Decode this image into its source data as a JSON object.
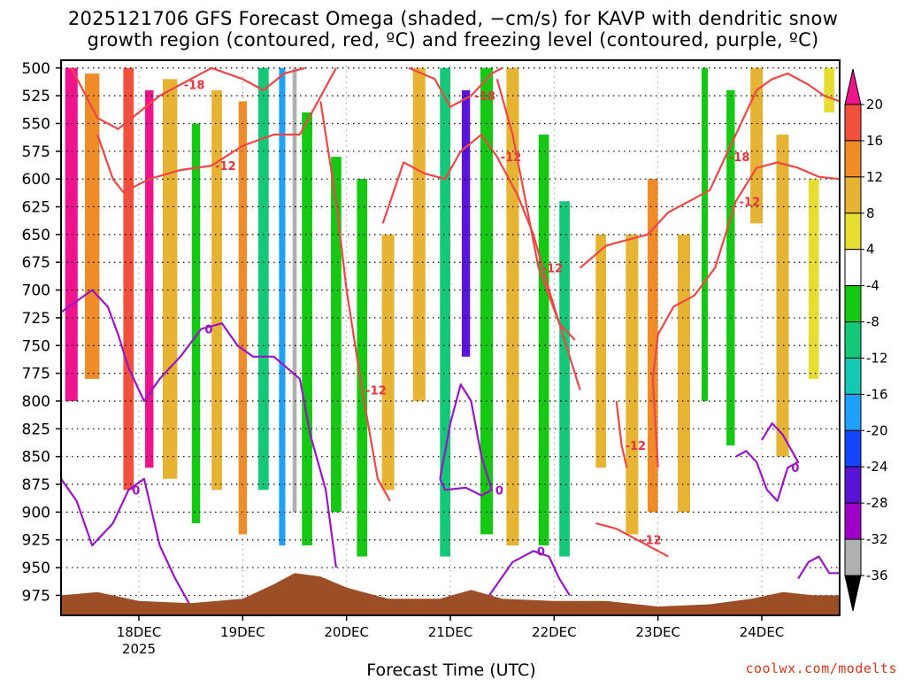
{
  "chart_data": {
    "type": "heatmap",
    "title_line1": "2025121706 GFS Forecast Omega (shaded, −cm/s) for KAVP with dendritic snow",
    "title_line2": "growth region (contoured, red, ºC) and freezing level (contoured, purple, ºC)",
    "xlabel": "Forecast Time (UTC)",
    "credit": "coolwx.com/modelts",
    "x_ticks": [
      {
        "day": 18,
        "label": "18DEC",
        "sub": "2025"
      },
      {
        "day": 19,
        "label": "19DEC",
        "sub": ""
      },
      {
        "day": 20,
        "label": "20DEC",
        "sub": ""
      },
      {
        "day": 21,
        "label": "21DEC",
        "sub": ""
      },
      {
        "day": 22,
        "label": "22DEC",
        "sub": ""
      },
      {
        "day": 23,
        "label": "23DEC",
        "sub": ""
      },
      {
        "day": 24,
        "label": "24DEC",
        "sub": ""
      }
    ],
    "x_range_days": [
      17.25,
      24.75
    ],
    "y_ticks": [
      500,
      525,
      550,
      575,
      600,
      625,
      650,
      675,
      700,
      725,
      750,
      775,
      800,
      825,
      850,
      875,
      900,
      925,
      950,
      975
    ],
    "y_range_hpa": [
      493,
      993
    ],
    "colorbar": {
      "levels": [
        -36,
        -32,
        -28,
        -24,
        -20,
        -16,
        -12,
        -8,
        -4,
        4,
        8,
        12,
        16,
        20
      ],
      "label_values": [
        "20",
        "16",
        "12",
        "8",
        "4",
        "-4",
        "-8",
        "-12",
        "-16",
        "-20",
        "-24",
        "-28",
        "-32",
        "-36"
      ],
      "colors": [
        "#000000",
        "#b0b0b0",
        "#a000c8",
        "#5a14d8",
        "#1446ff",
        "#1ea0ff",
        "#14c8b4",
        "#14c878",
        "#14c814",
        "#ffffff",
        "#e6dc32",
        "#e6b432",
        "#f08c28",
        "#f0503c",
        "#f0148c"
      ]
    },
    "omega_columns": [
      {
        "day": 17.35,
        "top": 500,
        "bottom": 800,
        "value": 20,
        "width": 0.12
      },
      {
        "day": 17.55,
        "top": 505,
        "bottom": 780,
        "value": 12,
        "width": 0.14
      },
      {
        "day": 17.9,
        "top": 500,
        "bottom": 880,
        "value": 16,
        "width": 0.1
      },
      {
        "day": 18.1,
        "top": 520,
        "bottom": 860,
        "value": 20,
        "width": 0.08
      },
      {
        "day": 18.3,
        "top": 510,
        "bottom": 870,
        "value": 8,
        "width": 0.14
      },
      {
        "day": 18.55,
        "top": 550,
        "bottom": 910,
        "value": -8,
        "width": 0.08
      },
      {
        "day": 18.75,
        "top": 520,
        "bottom": 880,
        "value": 8,
        "width": 0.1
      },
      {
        "day": 19.0,
        "top": 530,
        "bottom": 920,
        "value": 12,
        "width": 0.08
      },
      {
        "day": 19.2,
        "top": 500,
        "bottom": 880,
        "value": -12,
        "width": 0.1
      },
      {
        "day": 19.38,
        "top": 500,
        "bottom": 930,
        "value": -20,
        "width": 0.06
      },
      {
        "day": 19.5,
        "top": 500,
        "bottom": 900,
        "value": -36,
        "width": 0.04
      },
      {
        "day": 19.62,
        "top": 540,
        "bottom": 930,
        "value": -8,
        "width": 0.1
      },
      {
        "day": 19.9,
        "top": 580,
        "bottom": 900,
        "value": -8,
        "width": 0.1
      },
      {
        "day": 20.15,
        "top": 600,
        "bottom": 940,
        "value": -8,
        "width": 0.1
      },
      {
        "day": 20.4,
        "top": 650,
        "bottom": 880,
        "value": 8,
        "width": 0.12
      },
      {
        "day": 20.7,
        "top": 500,
        "bottom": 800,
        "value": 8,
        "width": 0.12
      },
      {
        "day": 20.95,
        "top": 500,
        "bottom": 940,
        "value": -12,
        "width": 0.1
      },
      {
        "day": 21.15,
        "top": 520,
        "bottom": 760,
        "value": -28,
        "width": 0.08
      },
      {
        "day": 21.35,
        "top": 500,
        "bottom": 920,
        "value": -8,
        "width": 0.12
      },
      {
        "day": 21.6,
        "top": 500,
        "bottom": 930,
        "value": 8,
        "width": 0.12
      },
      {
        "day": 21.9,
        "top": 560,
        "bottom": 930,
        "value": -8,
        "width": 0.1
      },
      {
        "day": 22.1,
        "top": 620,
        "bottom": 940,
        "value": -12,
        "width": 0.1
      },
      {
        "day": 22.45,
        "top": 650,
        "bottom": 860,
        "value": 8,
        "width": 0.1
      },
      {
        "day": 22.75,
        "top": 650,
        "bottom": 920,
        "value": 8,
        "width": 0.12
      },
      {
        "day": 22.95,
        "top": 600,
        "bottom": 900,
        "value": 12,
        "width": 0.1
      },
      {
        "day": 23.25,
        "top": 650,
        "bottom": 900,
        "value": 8,
        "width": 0.12
      },
      {
        "day": 23.45,
        "top": 500,
        "bottom": 800,
        "value": -8,
        "width": 0.06
      },
      {
        "day": 23.7,
        "top": 520,
        "bottom": 840,
        "value": -8,
        "width": 0.08
      },
      {
        "day": 23.95,
        "top": 500,
        "bottom": 640,
        "value": 8,
        "width": 0.12
      },
      {
        "day": 24.2,
        "top": 560,
        "bottom": 850,
        "value": 8,
        "width": 0.12
      },
      {
        "day": 24.5,
        "top": 600,
        "bottom": 780,
        "value": 4,
        "width": 0.1
      },
      {
        "day": 24.65,
        "top": 500,
        "bottom": 540,
        "value": 4,
        "width": 0.1
      }
    ],
    "red_contours": [
      {
        "label": "-18",
        "points": [
          [
            17.35,
            500
          ],
          [
            17.6,
            545
          ],
          [
            17.8,
            555
          ],
          [
            18.0,
            540
          ],
          [
            18.2,
            525
          ],
          [
            18.4,
            515
          ],
          [
            18.7,
            500
          ],
          [
            19.0,
            510
          ],
          [
            19.2,
            520
          ],
          [
            19.4,
            505
          ],
          [
            19.6,
            500
          ]
        ]
      },
      {
        "label": "-12",
        "points": [
          [
            17.6,
            560
          ],
          [
            17.75,
            600
          ],
          [
            17.85,
            612
          ],
          [
            18.1,
            600
          ],
          [
            18.4,
            592
          ],
          [
            18.7,
            588
          ],
          [
            19.0,
            570
          ],
          [
            19.3,
            560
          ],
          [
            19.55,
            560
          ],
          [
            19.9,
            500
          ]
        ]
      },
      {
        "label": "-12",
        "points": [
          [
            19.75,
            530
          ],
          [
            19.9,
            620
          ],
          [
            20.0,
            700
          ],
          [
            20.15,
            790
          ],
          [
            20.3,
            870
          ],
          [
            20.42,
            890
          ]
        ]
      },
      {
        "label": "-18",
        "points": [
          [
            20.6,
            500
          ],
          [
            20.85,
            510
          ],
          [
            21.0,
            535
          ],
          [
            21.2,
            525
          ],
          [
            21.4,
            505
          ],
          [
            21.5,
            500
          ]
        ]
      },
      {
        "label": "-12",
        "points": [
          [
            20.35,
            640
          ],
          [
            20.55,
            585
          ],
          [
            20.75,
            595
          ],
          [
            20.95,
            600
          ],
          [
            21.1,
            575
          ],
          [
            21.3,
            560
          ],
          [
            21.45,
            580
          ],
          [
            21.65,
            615
          ],
          [
            21.8,
            650
          ],
          [
            21.95,
            700
          ],
          [
            22.15,
            760
          ],
          [
            22.25,
            790
          ]
        ]
      },
      {
        "label": "-12",
        "points": [
          [
            21.45,
            510
          ],
          [
            21.6,
            560
          ],
          [
            21.85,
            680
          ],
          [
            22.05,
            730
          ],
          [
            22.2,
            745
          ]
        ]
      },
      {
        "label": "-18",
        "points": [
          [
            22.25,
            680
          ],
          [
            22.5,
            660
          ],
          [
            22.7,
            655
          ],
          [
            22.9,
            650
          ],
          [
            23.1,
            630
          ],
          [
            23.3,
            620
          ],
          [
            23.5,
            610
          ],
          [
            23.65,
            580
          ],
          [
            23.8,
            550
          ],
          [
            23.95,
            520
          ],
          [
            24.1,
            510
          ],
          [
            24.25,
            505
          ],
          [
            24.45,
            515
          ],
          [
            24.6,
            525
          ],
          [
            24.75,
            530
          ]
        ]
      },
      {
        "label": "-12",
        "points": [
          [
            22.6,
            800
          ],
          [
            22.65,
            840
          ],
          [
            22.7,
            860
          ]
        ]
      },
      {
        "label": "-12",
        "points": [
          [
            23.0,
            860
          ],
          [
            22.95,
            780
          ],
          [
            23.0,
            740
          ],
          [
            23.15,
            715
          ],
          [
            23.35,
            705
          ],
          [
            23.55,
            680
          ],
          [
            23.75,
            620
          ],
          [
            23.95,
            590
          ],
          [
            24.15,
            585
          ],
          [
            24.35,
            590
          ],
          [
            24.55,
            598
          ],
          [
            24.75,
            600
          ]
        ]
      },
      {
        "label": "-12",
        "points": [
          [
            22.4,
            910
          ],
          [
            22.6,
            915
          ],
          [
            22.8,
            925
          ],
          [
            23.0,
            935
          ],
          [
            23.1,
            940
          ]
        ]
      }
    ],
    "purple_contours": [
      {
        "label": "0",
        "points": [
          [
            17.25,
            720
          ],
          [
            17.4,
            710
          ],
          [
            17.55,
            700
          ],
          [
            17.7,
            715
          ],
          [
            17.8,
            740
          ],
          [
            17.9,
            770
          ],
          [
            18.05,
            800
          ],
          [
            18.2,
            780
          ],
          [
            18.4,
            760
          ],
          [
            18.6,
            735
          ],
          [
            18.8,
            730
          ],
          [
            18.95,
            750
          ],
          [
            19.1,
            760
          ],
          [
            19.3,
            760
          ],
          [
            19.55,
            780
          ],
          [
            19.65,
            830
          ],
          [
            19.8,
            880
          ],
          [
            19.9,
            950
          ]
        ]
      },
      {
        "label": "0",
        "points": [
          [
            17.25,
            870
          ],
          [
            17.4,
            890
          ],
          [
            17.55,
            930
          ],
          [
            17.75,
            910
          ],
          [
            17.9,
            880
          ],
          [
            18.05,
            870
          ],
          [
            18.2,
            930
          ],
          [
            18.35,
            960
          ],
          [
            18.5,
            985
          ]
        ]
      },
      {
        "label": "0",
        "points": [
          [
            20.9,
            870
          ],
          [
            21.0,
            820
          ],
          [
            21.1,
            785
          ],
          [
            21.2,
            800
          ],
          [
            21.3,
            850
          ],
          [
            21.4,
            880
          ],
          [
            21.3,
            885
          ],
          [
            21.15,
            878
          ],
          [
            20.95,
            880
          ],
          [
            20.9,
            870
          ]
        ]
      },
      {
        "label": "0",
        "points": [
          [
            21.3,
            985
          ],
          [
            21.45,
            965
          ],
          [
            21.6,
            945
          ],
          [
            21.8,
            935
          ],
          [
            21.95,
            940
          ],
          [
            22.05,
            960
          ],
          [
            22.15,
            975
          ]
        ]
      },
      {
        "label": "0",
        "points": [
          [
            23.75,
            850
          ],
          [
            23.85,
            845
          ],
          [
            23.95,
            855
          ],
          [
            24.05,
            880
          ],
          [
            24.15,
            890
          ],
          [
            24.25,
            860
          ],
          [
            24.35,
            855
          ],
          [
            24.2,
            830
          ],
          [
            24.1,
            820
          ],
          [
            24.0,
            835
          ]
        ]
      },
      {
        "label": "",
        "points": [
          [
            24.35,
            960
          ],
          [
            24.45,
            945
          ],
          [
            24.55,
            940
          ],
          [
            24.65,
            955
          ],
          [
            24.75,
            955
          ]
        ]
      }
    ],
    "terrain_top_hpa": [
      [
        17.25,
        975
      ],
      [
        17.6,
        972
      ],
      [
        18.0,
        980
      ],
      [
        18.5,
        982
      ],
      [
        19.0,
        978
      ],
      [
        19.3,
        965
      ],
      [
        19.5,
        955
      ],
      [
        19.75,
        958
      ],
      [
        20.0,
        968
      ],
      [
        20.4,
        978
      ],
      [
        20.9,
        978
      ],
      [
        21.2,
        970
      ],
      [
        21.5,
        978
      ],
      [
        22.0,
        980
      ],
      [
        22.5,
        980
      ],
      [
        23.0,
        985
      ],
      [
        23.5,
        983
      ],
      [
        23.9,
        978
      ],
      [
        24.2,
        972
      ],
      [
        24.5,
        975
      ],
      [
        24.75,
        975
      ]
    ]
  }
}
